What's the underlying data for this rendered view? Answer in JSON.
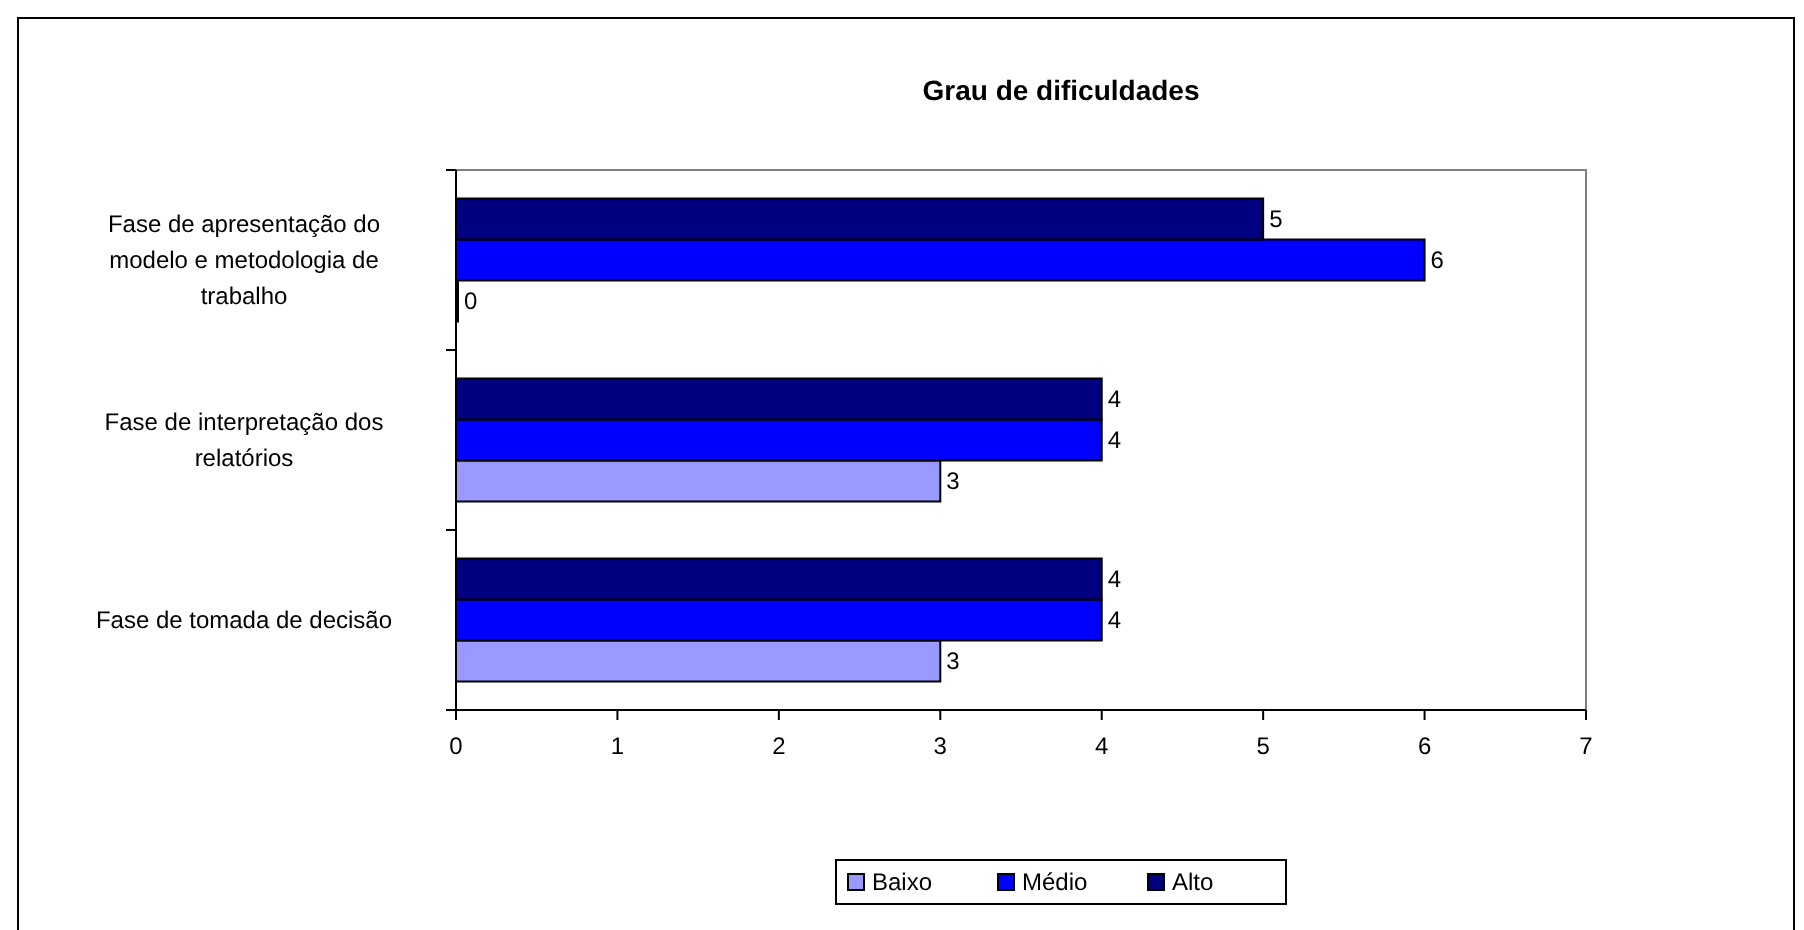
{
  "chart_data": {
    "type": "bar",
    "orientation": "horizontal",
    "title": "Grau de dificuldades",
    "categories": [
      "Fase de apresentação do modelo e metodologia de trabalho",
      "Fase de interpretação dos relatórios",
      "Fase de tomada de decisão"
    ],
    "series": [
      {
        "name": "Baixo",
        "color": "#9999ff",
        "values": [
          0,
          3,
          3
        ]
      },
      {
        "name": "Médio",
        "color": "#0000ff",
        "values": [
          6,
          4,
          4
        ]
      },
      {
        "name": "Alto",
        "color": "#000080",
        "values": [
          5,
          4,
          4
        ]
      }
    ],
    "xlim": [
      0,
      7
    ],
    "xticks": [
      0,
      1,
      2,
      3,
      4,
      5,
      6,
      7
    ],
    "data_labels": true,
    "legend": "bottom",
    "grid": false
  }
}
